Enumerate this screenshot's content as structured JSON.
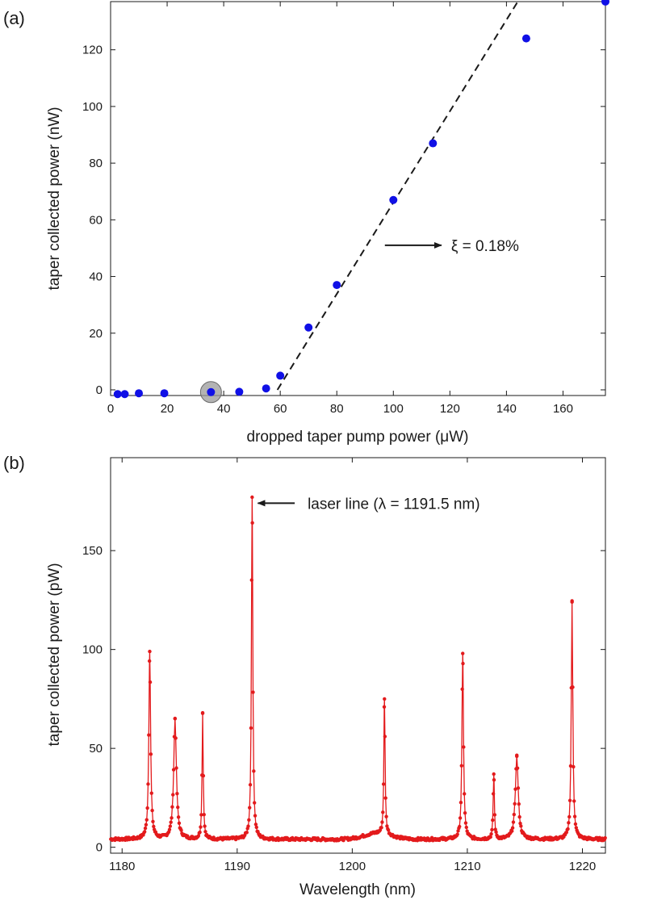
{
  "chart_data": [
    {
      "panel_label": "(a)",
      "type": "scatter",
      "xlabel": "dropped taper pump power (μW)",
      "ylabel": "taper collected power (nW)",
      "xlim": [
        0,
        175
      ],
      "ylim": [
        -2,
        137
      ],
      "xticks": [
        0,
        20,
        40,
        60,
        80,
        100,
        120,
        140,
        160
      ],
      "yticks": [
        0,
        20,
        40,
        60,
        80,
        100,
        120
      ],
      "grid": false,
      "points": [
        {
          "x": 2.5,
          "y": -1.5
        },
        {
          "x": 5,
          "y": -1.5
        },
        {
          "x": 10,
          "y": -1.2
        },
        {
          "x": 19,
          "y": -1.2
        },
        {
          "x": 35.5,
          "y": -0.8
        },
        {
          "x": 45.5,
          "y": -0.7
        },
        {
          "x": 55,
          "y": 0.5
        },
        {
          "x": 60,
          "y": 5
        },
        {
          "x": 70,
          "y": 22
        },
        {
          "x": 80,
          "y": 37
        },
        {
          "x": 100,
          "y": 67
        },
        {
          "x": 114,
          "y": 87
        },
        {
          "x": 147,
          "y": 124
        },
        {
          "x": 175,
          "y": 137
        }
      ],
      "highlighted_point": {
        "x": 35.5,
        "y": -0.8
      },
      "fit_line": {
        "x1": 59,
        "y1": 0,
        "x2": 144,
        "y2": 137,
        "style": "dashed"
      },
      "annotation": {
        "text": "ξ = 0.18%",
        "arrow_from": {
          "x": 97,
          "y": 51
        },
        "arrow_to": {
          "x": 117,
          "y": 51
        }
      },
      "colors": {
        "points": "#1010e6",
        "highlight": "#9a9a9a",
        "fit": "#1a1a1a"
      }
    },
    {
      "panel_label": "(b)",
      "type": "line",
      "xlabel": "Wavelength (nm)",
      "ylabel": "taper collected power  (pW)",
      "xlim": [
        1179,
        1222
      ],
      "ylim": [
        -3,
        197
      ],
      "xticks": [
        1180,
        1190,
        1200,
        1210,
        1220
      ],
      "yticks": [
        0,
        50,
        100,
        150
      ],
      "grid": false,
      "baseline": 4,
      "peaks": [
        {
          "x": 1182.4,
          "y": 99,
          "width": 0.18
        },
        {
          "x": 1184.6,
          "y": 65,
          "width": 0.28
        },
        {
          "x": 1187.0,
          "y": 68,
          "width": 0.12
        },
        {
          "x": 1191.3,
          "y": 177,
          "width": 0.14
        },
        {
          "x": 1202.8,
          "y": 75,
          "width": 0.12
        },
        {
          "x": 1209.6,
          "y": 98,
          "width": 0.16
        },
        {
          "x": 1212.3,
          "y": 37,
          "width": 0.12
        },
        {
          "x": 1214.3,
          "y": 46,
          "width": 0.3
        },
        {
          "x": 1219.1,
          "y": 124,
          "width": 0.16
        }
      ],
      "annotation": {
        "text": "laser line (λ = 1191.5 nm)",
        "arrow_from": {
          "x": 1195.0,
          "y": 174
        },
        "arrow_to": {
          "x": 1191.8,
          "y": 174
        }
      },
      "colors": {
        "line": "#e31a1c"
      }
    }
  ]
}
